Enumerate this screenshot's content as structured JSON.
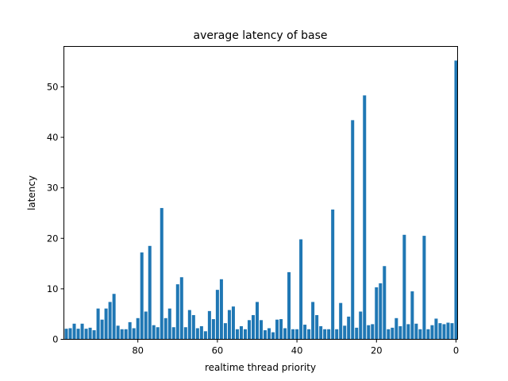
{
  "chart_data": {
    "type": "bar",
    "title": "average latency of base",
    "xlabel": "realtime thread priority",
    "ylabel": "latency",
    "x_inverted": true,
    "xlim": [
      98.6,
      -0.4
    ],
    "ylim": [
      0,
      58
    ],
    "xticks": [
      80,
      60,
      40,
      20,
      0
    ],
    "yticks": [
      0,
      10,
      20,
      30,
      40,
      50
    ],
    "grid": false,
    "bar_width": 0.8,
    "x": [
      98,
      97,
      96,
      95,
      94,
      93,
      92,
      91,
      90,
      89,
      88,
      87,
      86,
      85,
      84,
      83,
      82,
      81,
      80,
      79,
      78,
      77,
      76,
      75,
      74,
      73,
      72,
      71,
      70,
      69,
      68,
      67,
      66,
      65,
      64,
      63,
      62,
      61,
      60,
      59,
      58,
      57,
      56,
      55,
      54,
      53,
      52,
      51,
      50,
      49,
      48,
      47,
      46,
      45,
      44,
      43,
      42,
      41,
      40,
      39,
      38,
      37,
      36,
      35,
      34,
      33,
      32,
      31,
      30,
      29,
      28,
      27,
      26,
      25,
      24,
      23,
      22,
      21,
      20,
      19,
      18,
      17,
      16,
      15,
      14,
      13,
      12,
      11,
      10,
      9,
      8,
      7,
      6,
      5,
      4,
      3,
      2,
      1,
      0
    ],
    "values": [
      2.1,
      2.2,
      3.1,
      2.1,
      3.1,
      2.1,
      2.3,
      1.8,
      6.1,
      3.9,
      6.1,
      7.4,
      9.0,
      2.7,
      2.0,
      2.0,
      3.4,
      2.2,
      4.2,
      17.2,
      5.5,
      18.5,
      2.8,
      2.4,
      26.0,
      4.2,
      6.1,
      2.4,
      10.9,
      12.3,
      2.4,
      5.8,
      4.8,
      2.2,
      2.6,
      1.6,
      5.6,
      4.0,
      9.8,
      11.9,
      3.2,
      5.8,
      6.5,
      2.0,
      2.6,
      2.0,
      3.8,
      4.8,
      7.4,
      3.8,
      1.8,
      2.2,
      1.4,
      3.9,
      4.0,
      2.2,
      13.3,
      2.0,
      2.0,
      19.8,
      2.9,
      2.0,
      7.4,
      4.8,
      2.6,
      2.0,
      2.0,
      25.7,
      2.0,
      7.2,
      2.7,
      4.5,
      43.4,
      2.3,
      5.5,
      48.3,
      2.8,
      3.0,
      10.3,
      11.1,
      14.5,
      2.0,
      2.3,
      4.2,
      2.6,
      20.7,
      3.0,
      9.5,
      3.1,
      2.0,
      20.5,
      2.0,
      2.8,
      4.1,
      3.2,
      3.0,
      3.3,
      3.2,
      55.2
    ]
  }
}
